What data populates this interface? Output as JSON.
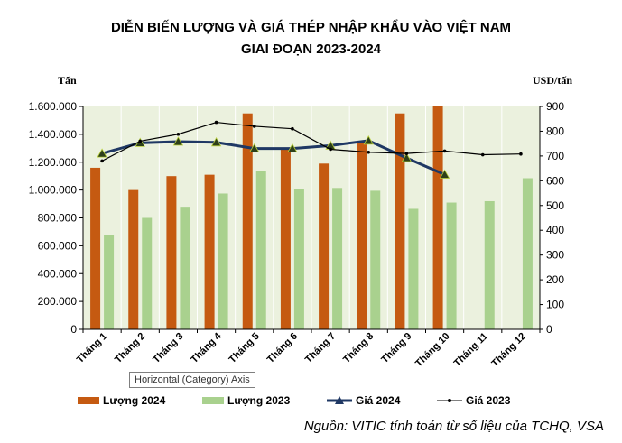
{
  "chart_data": {
    "type": "bar",
    "title_line1": "DIỄN BIẾN LƯỢNG VÀ GIÁ THÉP NHẬP KHẨU VÀO VIỆT NAM",
    "title_line2": "GIAI ĐOẠN 2023-2024",
    "left_unit": "Tấn",
    "right_unit": "USD/tấn",
    "categories": [
      "Tháng 1",
      "Tháng 2",
      "Tháng 3",
      "Tháng 4",
      "Tháng 5",
      "Tháng 6",
      "Tháng 7",
      "Tháng 8",
      "Tháng 9",
      "Tháng 10",
      "Tháng 11",
      "Tháng 12"
    ],
    "left_axis": {
      "ylim": [
        0,
        1600000
      ],
      "step": 200000,
      "tick_labels": [
        "0",
        "200.000",
        "400.000",
        "600.000",
        "800.000",
        "1.000.000",
        "1.200.000",
        "1.400.000",
        "1.600.000"
      ]
    },
    "right_axis": {
      "ylim": [
        0,
        900
      ],
      "step": 100,
      "tick_labels": [
        "0",
        "100",
        "200",
        "300",
        "400",
        "500",
        "600",
        "700",
        "800",
        "900"
      ]
    },
    "series": [
      {
        "name": "Lượng 2024",
        "kind": "bar",
        "axis": "left",
        "color": "#c55a11",
        "values": [
          1160000,
          1000000,
          1100000,
          1110000,
          1550000,
          1290000,
          1190000,
          1350000,
          1550000,
          1600000,
          null,
          null
        ]
      },
      {
        "name": "Lượng 2023",
        "kind": "bar",
        "axis": "left",
        "color": "#a9d18e",
        "values": [
          680000,
          800000,
          880000,
          975000,
          1140000,
          1010000,
          1015000,
          995000,
          865000,
          910000,
          920000,
          1085000
        ]
      },
      {
        "name": "Giá 2024",
        "kind": "line",
        "axis": "right",
        "color": "#1f3864",
        "values": [
          710,
          753,
          758,
          755,
          730,
          730,
          742,
          762,
          692,
          625,
          null,
          null
        ]
      },
      {
        "name": "Giá 2023",
        "kind": "line",
        "axis": "right",
        "color": "#000000",
        "values": [
          680,
          760,
          788,
          836,
          820,
          810,
          727,
          715,
          710,
          720,
          705,
          708
        ]
      }
    ],
    "plot_background": "#ebf1de",
    "grid": "vertical",
    "legend_position": "bottom"
  },
  "tooltip": "Horizontal (Category) Axis",
  "source": "Nguồn: VITIC tính toán từ số liệu của TCHQ, VSA"
}
